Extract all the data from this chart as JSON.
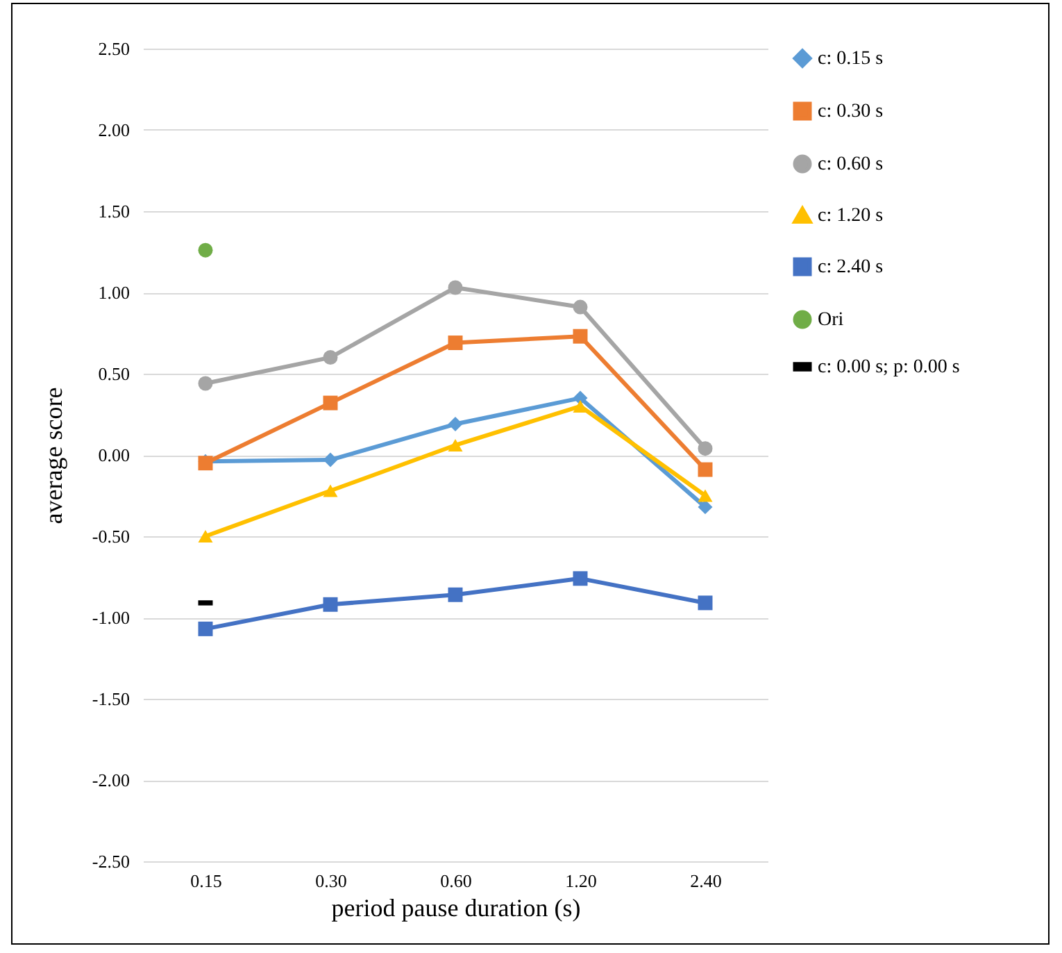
{
  "chart_data": {
    "type": "line",
    "xlabel": "period pause duration (s)",
    "ylabel": "average score",
    "categories": [
      "0.15",
      "0.30",
      "0.60",
      "1.20",
      "2.40"
    ],
    "ylim": [
      -2.5,
      2.5
    ],
    "yticks": [
      {
        "value": -2.5,
        "label": "-2.50"
      },
      {
        "value": -2,
        "label": "-2.00"
      },
      {
        "value": -1.5,
        "label": "-1.50"
      },
      {
        "value": -1,
        "label": "-1.00"
      },
      {
        "value": -0.5,
        "label": "-0.50"
      },
      {
        "value": 0,
        "label": "0.00"
      },
      {
        "value": 0.5,
        "label": "0.50"
      },
      {
        "value": 1,
        "label": "1.00"
      },
      {
        "value": 1.5,
        "label": "1.50"
      },
      {
        "value": 2,
        "label": "2.00"
      },
      {
        "value": 2.5,
        "label": "2.50"
      }
    ],
    "grid": "y",
    "legend": "right",
    "series": [
      {
        "name": "c: 0.15 s",
        "color": "#5b9bd5",
        "marker": "diamond",
        "values": [
          -0.04,
          -0.03,
          0.19,
          0.35,
          -0.32
        ]
      },
      {
        "name": "c: 0.30 s",
        "color": "#ed7d31",
        "marker": "square",
        "values": [
          -0.05,
          0.32,
          0.69,
          0.73,
          -0.09
        ]
      },
      {
        "name": "c: 0.60 s",
        "color": "#a5a5a5",
        "marker": "circle",
        "values": [
          0.44,
          0.6,
          1.03,
          0.91,
          0.04
        ]
      },
      {
        "name": "c: 1.20 s",
        "color": "#ffc000",
        "marker": "triangle",
        "values": [
          -0.5,
          -0.22,
          0.06,
          0.3,
          -0.25
        ]
      },
      {
        "name": "c: 2.40 s",
        "color": "#4472c4",
        "marker": "square",
        "values": [
          -1.07,
          -0.92,
          -0.86,
          -0.76,
          -0.91
        ]
      },
      {
        "name": "Ori",
        "color": "#70ad47",
        "type": "scatter",
        "marker": "circle",
        "values": [
          1.26,
          null,
          null,
          null,
          null
        ]
      },
      {
        "name": "c: 0.00 s; p: 0.00 s",
        "color": "#000000",
        "type": "scatter",
        "values": [
          -0.91,
          null,
          null,
          null,
          null
        ]
      }
    ]
  }
}
